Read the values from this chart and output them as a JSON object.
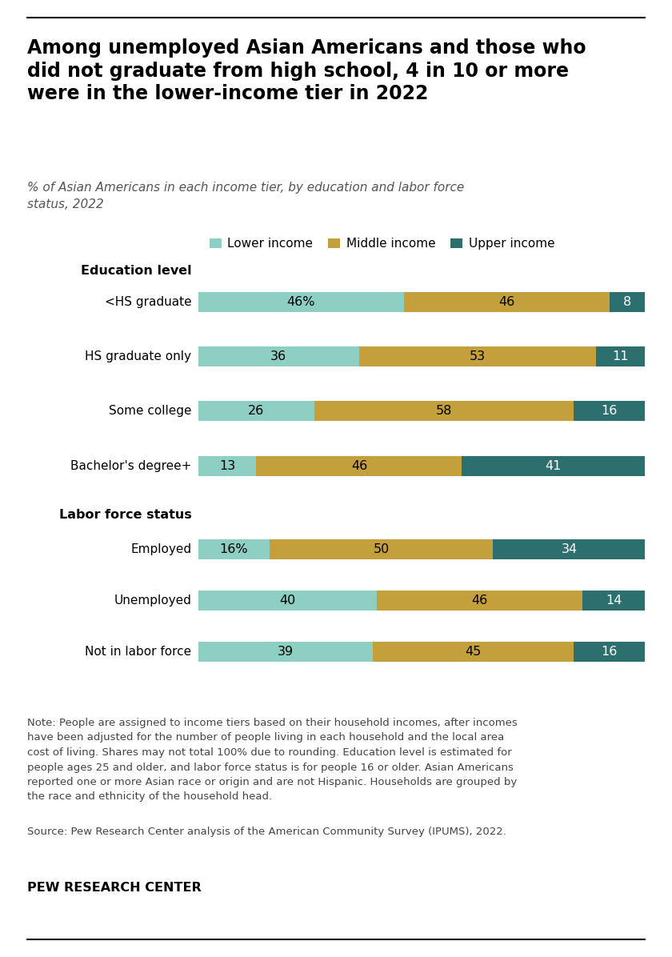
{
  "title": "Among unemployed Asian Americans and those who\ndid not graduate from high school, 4 in 10 or more\nwere in the lower-income tier in 2022",
  "subtitle": "% of Asian Americans in each income tier, by education and labor force\nstatus, 2022",
  "education_section_label": "Education level",
  "labor_section_label": "Labor force status",
  "legend_labels": [
    "Lower income",
    "Middle income",
    "Upper income"
  ],
  "colors": [
    "#8ecfc4",
    "#c4a03c",
    "#2d6e6e"
  ],
  "education_categories": [
    "<HS graduate",
    "HS graduate only",
    "Some college",
    "Bachelor's degree+"
  ],
  "education_data": [
    [
      46,
      46,
      8
    ],
    [
      36,
      53,
      11
    ],
    [
      26,
      58,
      16
    ],
    [
      13,
      46,
      41
    ]
  ],
  "labor_categories": [
    "Employed",
    "Unemployed",
    "Not in labor force"
  ],
  "labor_data": [
    [
      16,
      50,
      34
    ],
    [
      40,
      46,
      14
    ],
    [
      39,
      45,
      16
    ]
  ],
  "note_text": "Note: People are assigned to income tiers based on their household incomes, after incomes\nhave been adjusted for the number of people living in each household and the local area\ncost of living. Shares may not total 100% due to rounding. Education level is estimated for\npeople ages 25 and older, and labor force status is for people 16 or older. Asian Americans\nreported one or more Asian race or origin and are not Hispanic. Households are grouped by\nthe race and ethnicity of the household head.",
  "source_text": "Source: Pew Research Center analysis of the American Community Survey (IPUMS), 2022.",
  "branding": "PEW RESEARCH CENTER",
  "bg_color": "#ffffff",
  "bar_height": 0.55
}
